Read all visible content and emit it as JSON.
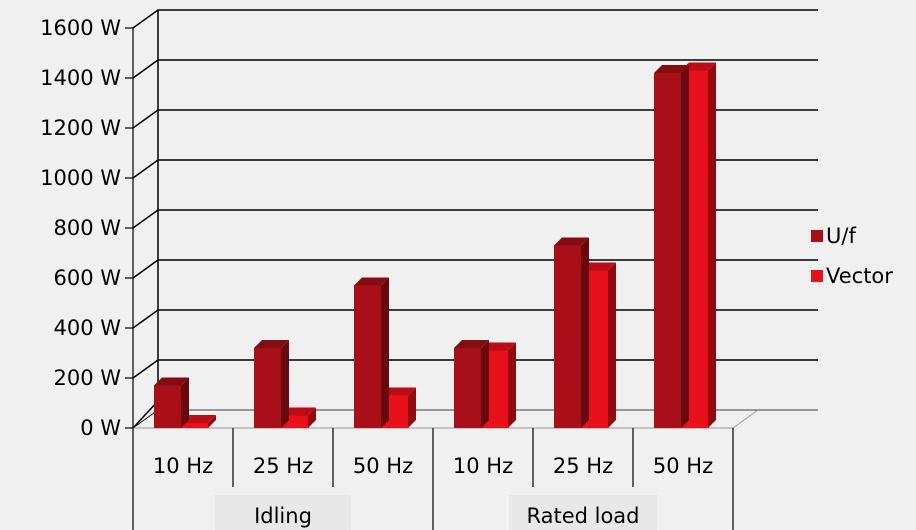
{
  "chart_data": {
    "type": "bar",
    "style": "3d-clustered-column",
    "groups": [
      {
        "label": "Idling",
        "categories": [
          "10 Hz",
          "25 Hz",
          "50 Hz"
        ]
      },
      {
        "label": "Rated load",
        "categories": [
          "10 Hz",
          "25 Hz",
          "50 Hz"
        ]
      }
    ],
    "series": [
      {
        "name": "U/f",
        "color": "#a80f18",
        "values": [
          170,
          320,
          570,
          320,
          730,
          1420
        ]
      },
      {
        "name": "Vector",
        "color": "#e8101a",
        "values": [
          20,
          50,
          130,
          310,
          630,
          1430
        ]
      }
    ],
    "y_ticks": [
      "0 W",
      "200 W",
      "400 W",
      "600 W",
      "800 W",
      "1000 W",
      "1200 W",
      "1400 W",
      "1600 W"
    ],
    "ylim": [
      0,
      1600
    ],
    "grid": true,
    "legend_position": "right"
  }
}
